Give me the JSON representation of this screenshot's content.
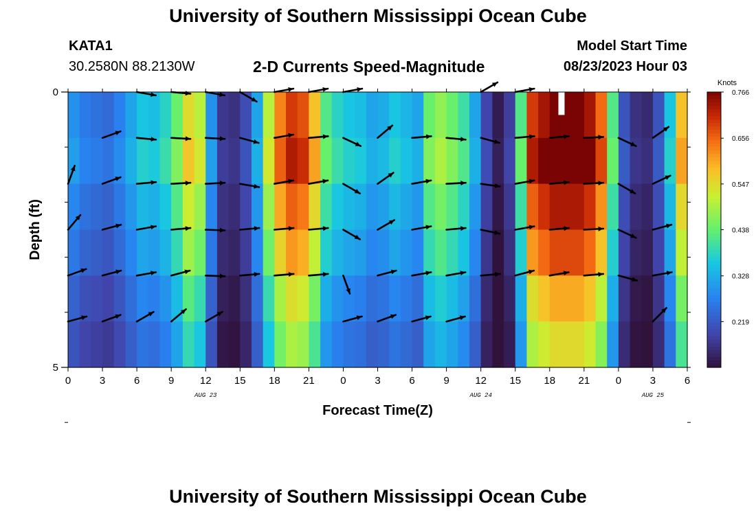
{
  "header": {
    "title": "University of Southern Mississippi Ocean Cube",
    "station": "KATA1",
    "coords": "30.2580N  88.2130W",
    "plot_title": "2-D Currents Speed-Magnitude",
    "start_label": "Model Start Time",
    "start_value": "08/23/2023 Hour 03"
  },
  "footer": {
    "title": "University of Southern Mississippi Ocean Cube"
  },
  "chart_data": {
    "type": "heatmap",
    "title": "2-D Currents Speed-Magnitude",
    "xlabel": "Forecast Time(Z)",
    "ylabel": "Depth (ft)",
    "x_ticks": [
      "0",
      "3",
      "6",
      "9",
      "12",
      "15",
      "18",
      "21",
      "0",
      "3",
      "6",
      "9",
      "12",
      "15",
      "18",
      "21",
      "0",
      "3",
      "6"
    ],
    "x_range_hours": [
      0,
      54
    ],
    "y_ticks": [
      "0",
      "5"
    ],
    "y_range_ft": [
      0,
      5
    ],
    "date_labels": [
      {
        "label": "AUG 23",
        "hour": 12
      },
      {
        "label": "AUG 24",
        "hour": 36
      },
      {
        "label": "AUG 25",
        "hour": 51
      }
    ],
    "colorbar": {
      "unit": "Knots",
      "ticks": [
        "0.766",
        "0.656",
        "0.547",
        "0.438",
        "0.328",
        "0.219"
      ],
      "min": 0.11,
      "max": 0.766
    },
    "depth_levels": [
      "0",
      "1",
      "2",
      "3",
      "4",
      "5"
    ],
    "speed_profile_knots": [
      0.28,
      0.25,
      0.24,
      0.23,
      0.26,
      0.3,
      0.34,
      0.33,
      0.36,
      0.42,
      0.52,
      0.48,
      0.28,
      0.16,
      0.15,
      0.19,
      0.3,
      0.48,
      0.6,
      0.66,
      0.64,
      0.55,
      0.4,
      0.36,
      0.34,
      0.33,
      0.3,
      0.31,
      0.34,
      0.32,
      0.3,
      0.42,
      0.45,
      0.42,
      0.38,
      0.3,
      0.18,
      0.12,
      0.17,
      0.4,
      0.66,
      0.7,
      0.73,
      0.73,
      0.73,
      0.7,
      0.62,
      0.4,
      0.2,
      0.15,
      0.14,
      0.2,
      0.34,
      0.55
    ],
    "speed_band_factors": [
      1.05,
      1.1,
      1.0,
      0.93,
      0.82,
      0.75
    ],
    "missing_cells": [
      {
        "hour": 43,
        "depth_band": "0"
      }
    ],
    "arrows": {
      "hours": [
        0,
        3,
        6,
        9,
        12,
        15,
        18,
        21,
        24,
        27,
        30,
        33,
        36,
        39,
        42,
        45,
        48,
        51,
        54
      ],
      "angles_deg": [
        [
          null,
          null,
          10,
          5,
          10,
          30,
          -10,
          -10,
          -10,
          null,
          null,
          null,
          -30,
          -10,
          null,
          null,
          null,
          null,
          null
        ],
        [
          null,
          -20,
          5,
          3,
          3,
          15,
          -10,
          -5,
          25,
          -40,
          -5,
          5,
          15,
          -5,
          -5,
          -3,
          25,
          -35,
          null
        ],
        [
          -70,
          -20,
          -5,
          -3,
          -3,
          10,
          -10,
          -10,
          30,
          -35,
          -10,
          -3,
          8,
          -10,
          -5,
          -3,
          30,
          -25,
          null
        ],
        [
          -50,
          -15,
          -10,
          -5,
          2,
          -5,
          -5,
          -5,
          30,
          -30,
          -10,
          -5,
          12,
          -10,
          -5,
          -3,
          25,
          -15,
          null
        ],
        [
          -20,
          -15,
          -10,
          -15,
          2,
          -5,
          -5,
          -5,
          70,
          -15,
          -10,
          -10,
          -5,
          -15,
          -10,
          -5,
          15,
          -10,
          null
        ],
        [
          -15,
          -20,
          -30,
          -40,
          -30,
          null,
          null,
          null,
          -15,
          -20,
          -15,
          -15,
          null,
          null,
          null,
          null,
          null,
          -45,
          null
        ]
      ]
    }
  }
}
